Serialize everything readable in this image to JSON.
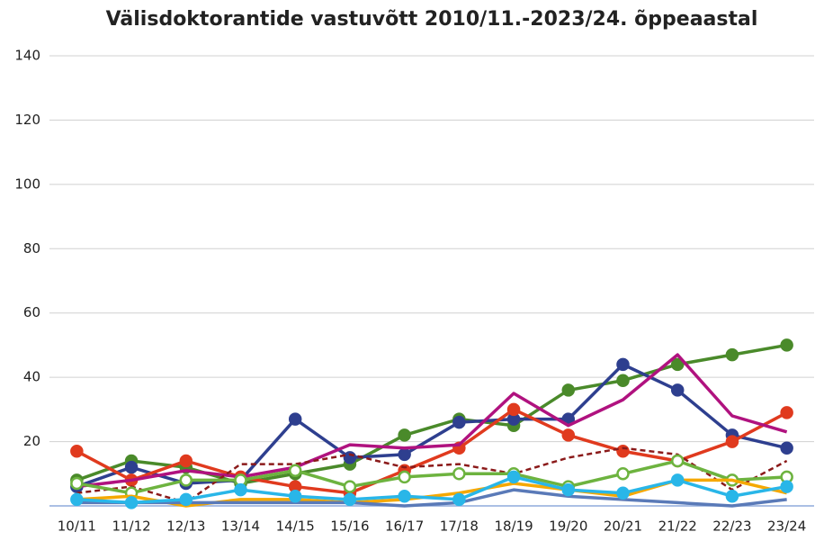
{
  "chart_data": {
    "type": "line",
    "title": "Välisdoktorantide vastuvõtt 2010/11.-2023/24. õppeaastal",
    "categories": [
      "10/11",
      "11/12",
      "12/13",
      "13/14",
      "14/15",
      "15/16",
      "16/17",
      "17/18",
      "18/19",
      "19/20",
      "20/21",
      "21/22",
      "22/23",
      "23/24"
    ],
    "ylim": [
      0,
      140
    ],
    "yticks": [
      20,
      40,
      60,
      80,
      100,
      120,
      140
    ],
    "grid": true,
    "series": [
      {
        "color": "#4a8a2a",
        "marker": "filled",
        "values": [
          8,
          14,
          12,
          7,
          10,
          13,
          22,
          27,
          25,
          36,
          39,
          44,
          47,
          50
        ]
      },
      {
        "color": "#2e3f8f",
        "marker": "filled",
        "values": [
          6,
          12,
          7,
          8,
          27,
          15,
          16,
          26,
          27,
          27,
          44,
          36,
          22,
          18
        ]
      },
      {
        "color": "#e03a1e",
        "marker": "filled",
        "values": [
          17,
          8,
          14,
          9,
          6,
          4,
          11,
          18,
          30,
          22,
          17,
          14,
          20,
          29
        ]
      },
      {
        "color": "#b0127f",
        "values": [
          6,
          8,
          11,
          9,
          12,
          19,
          18,
          19,
          35,
          25,
          33,
          47,
          28,
          23
        ]
      },
      {
        "color": "#8b1a1a",
        "dash": true,
        "values": [
          4,
          6,
          1,
          13,
          13,
          16,
          12,
          13,
          10,
          15,
          18,
          16,
          5,
          14
        ]
      },
      {
        "color": "#6db33f",
        "marker": "hollow",
        "values": [
          7,
          4,
          8,
          8,
          11,
          6,
          9,
          10,
          10,
          6,
          10,
          14,
          8,
          9
        ]
      },
      {
        "color": "#f5a800",
        "values": [
          2,
          3,
          0,
          2,
          2,
          1,
          2,
          4,
          7,
          5,
          3,
          8,
          8,
          4
        ]
      },
      {
        "color": "#5a7ab8",
        "values": [
          1,
          1,
          1,
          1,
          1,
          1,
          0,
          1,
          5,
          3,
          2,
          1,
          0,
          2
        ]
      },
      {
        "color": "#29b6e8",
        "marker": "filled",
        "values": [
          2,
          1,
          2,
          5,
          3,
          2,
          3,
          2,
          9,
          5,
          4,
          8,
          3,
          6
        ]
      }
    ]
  }
}
